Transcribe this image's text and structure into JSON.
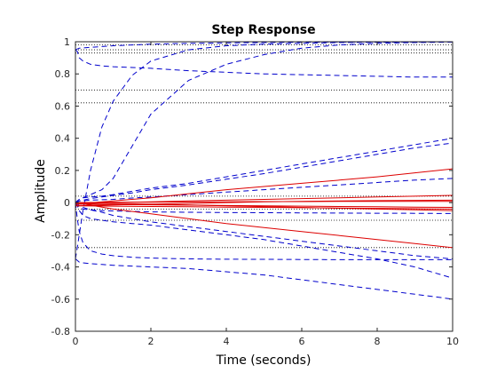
{
  "chart_data": {
    "type": "line",
    "title": "Step Response",
    "xlabel": "Time (seconds)",
    "ylabel": "Amplitude",
    "xlim": [
      0,
      10
    ],
    "ylim": [
      -0.8,
      1
    ],
    "xticks": [
      "0",
      "2",
      "4",
      "6",
      "8",
      "10"
    ],
    "yticks": [
      "-0.8",
      "-0.6",
      "-0.4",
      "-0.2",
      "0",
      "0.2",
      "0.4",
      "0.6",
      "0.8",
      "1"
    ],
    "reference_levels": [
      1,
      0.98,
      0.95,
      0.93,
      0.7,
      0.62,
      0.04,
      -0.04,
      -0.11,
      -0.28
    ],
    "colors": {
      "dashed": "#0000cc",
      "solid": "#dd0000",
      "reference": "#000000"
    },
    "series": [
      {
        "style": "dashed",
        "x": [
          0,
          0.05,
          0.1,
          0.2,
          0.4,
          0.7,
          1,
          1.5,
          2,
          3,
          4,
          5,
          6,
          7,
          8,
          9,
          10
        ],
        "y": [
          0.95,
          0.955,
          0.96,
          0.962,
          0.965,
          0.97,
          0.975,
          0.98,
          0.985,
          0.99,
          0.993,
          0.995,
          0.997,
          0.998,
          0.999,
          0.999,
          1.0
        ]
      },
      {
        "style": "dashed",
        "x": [
          0,
          0.05,
          0.1,
          0.2,
          0.4,
          0.7,
          1,
          1.5,
          2,
          3,
          4,
          5,
          6,
          7,
          8,
          9,
          10
        ],
        "y": [
          0.95,
          0.94,
          0.9,
          0.88,
          0.86,
          0.85,
          0.845,
          0.84,
          0.835,
          0.82,
          0.81,
          0.8,
          0.795,
          0.79,
          0.785,
          0.78,
          0.78
        ]
      },
      {
        "style": "dashed",
        "x": [
          0,
          0.05,
          0.1,
          0.2,
          0.4,
          0.7,
          1,
          1.5,
          2,
          3,
          4,
          5,
          6,
          7,
          8,
          9,
          10
        ],
        "y": [
          -0.35,
          -0.28,
          -0.2,
          -0.05,
          0.2,
          0.47,
          0.63,
          0.79,
          0.88,
          0.95,
          0.975,
          0.985,
          0.99,
          0.995,
          0.997,
          0.998,
          1.0
        ]
      },
      {
        "style": "dashed",
        "x": [
          0,
          0.05,
          0.1,
          0.2,
          0.4,
          0.7,
          1,
          1.5,
          2,
          3,
          4,
          5,
          6,
          7,
          8,
          9,
          10
        ],
        "y": [
          0.0,
          0.01,
          0.02,
          0.03,
          0.05,
          0.08,
          0.15,
          0.35,
          0.55,
          0.76,
          0.86,
          0.92,
          0.96,
          0.98,
          0.99,
          0.995,
          0.998
        ]
      },
      {
        "style": "dashed",
        "x": [
          0,
          0.05,
          0.1,
          0.2,
          0.4,
          0.7,
          1,
          1.5,
          2,
          3,
          4,
          5,
          6,
          7,
          8,
          9,
          10
        ],
        "y": [
          0.0,
          0.01,
          0.02,
          0.03,
          0.035,
          0.04,
          0.05,
          0.07,
          0.09,
          0.12,
          0.16,
          0.2,
          0.24,
          0.28,
          0.32,
          0.36,
          0.4
        ]
      },
      {
        "style": "dashed",
        "x": [
          0,
          0.05,
          0.1,
          0.2,
          0.4,
          0.7,
          1,
          1.5,
          2,
          3,
          4,
          5,
          6,
          7,
          8,
          9,
          10
        ],
        "y": [
          0.0,
          0.005,
          0.01,
          0.015,
          0.025,
          0.035,
          0.045,
          0.06,
          0.08,
          0.11,
          0.145,
          0.18,
          0.22,
          0.26,
          0.3,
          0.34,
          0.37
        ]
      },
      {
        "style": "dashed",
        "x": [
          0,
          0.05,
          0.1,
          0.2,
          0.4,
          0.7,
          1,
          1.5,
          2,
          3,
          4,
          5,
          6,
          7,
          8,
          9,
          10
        ],
        "y": [
          0.0,
          0.005,
          0.01,
          0.012,
          0.015,
          0.018,
          0.02,
          0.028,
          0.035,
          0.05,
          0.065,
          0.08,
          0.095,
          0.11,
          0.125,
          0.14,
          0.15
        ]
      },
      {
        "style": "dashed",
        "x": [
          0,
          0.05,
          0.1,
          0.2,
          0.4,
          0.7,
          1,
          1.5,
          2,
          3,
          4,
          5,
          6,
          7,
          8,
          9,
          10
        ],
        "y": [
          -0.35,
          -0.36,
          -0.37,
          -0.375,
          -0.38,
          -0.385,
          -0.39,
          -0.395,
          -0.4,
          -0.41,
          -0.43,
          -0.45,
          -0.48,
          -0.51,
          -0.54,
          -0.57,
          -0.6
        ]
      },
      {
        "style": "dashed",
        "x": [
          0,
          0.05,
          0.1,
          0.2,
          0.4,
          0.7,
          1,
          1.5,
          2,
          3,
          4,
          5,
          6,
          7,
          8,
          9,
          10
        ],
        "y": [
          0.0,
          -0.02,
          -0.05,
          -0.08,
          -0.1,
          -0.11,
          -0.12,
          -0.13,
          -0.14,
          -0.17,
          -0.2,
          -0.23,
          -0.27,
          -0.31,
          -0.35,
          -0.4,
          -0.47
        ]
      },
      {
        "style": "dashed",
        "x": [
          0,
          0.05,
          0.1,
          0.2,
          0.4,
          0.7,
          1,
          1.5,
          2,
          3,
          4,
          5,
          6,
          7,
          8,
          9,
          10
        ],
        "y": [
          0.0,
          -0.01,
          -0.02,
          -0.03,
          -0.045,
          -0.06,
          -0.08,
          -0.1,
          -0.12,
          -0.15,
          -0.18,
          -0.21,
          -0.24,
          -0.27,
          -0.3,
          -0.33,
          -0.35
        ]
      },
      {
        "style": "dashed",
        "x": [
          0,
          0.05,
          0.1,
          0.2,
          0.4,
          0.7,
          1,
          1.5,
          2,
          3,
          4,
          5,
          6,
          7,
          8,
          9,
          10
        ],
        "y": [
          0.0,
          -0.1,
          -0.18,
          -0.25,
          -0.3,
          -0.32,
          -0.33,
          -0.34,
          -0.345,
          -0.35,
          -0.352,
          -0.353,
          -0.354,
          -0.355,
          -0.355,
          -0.355,
          -0.355
        ]
      },
      {
        "style": "dashed",
        "x": [
          0,
          0.05,
          0.1,
          0.2,
          0.4,
          0.7,
          1,
          1.5,
          2,
          3,
          4,
          5,
          6,
          7,
          8,
          9,
          10
        ],
        "y": [
          0.0,
          -0.02,
          -0.03,
          -0.04,
          -0.045,
          -0.05,
          -0.052,
          -0.055,
          -0.058,
          -0.06,
          -0.062,
          -0.063,
          -0.064,
          -0.065,
          -0.066,
          -0.067,
          -0.068
        ]
      },
      {
        "style": "solid",
        "x": [
          0,
          1,
          2,
          3,
          4,
          5,
          6,
          7,
          8,
          9,
          10
        ],
        "y": [
          -0.01,
          0.01,
          0.03,
          0.055,
          0.08,
          0.1,
          0.12,
          0.14,
          0.16,
          0.185,
          0.21
        ]
      },
      {
        "style": "solid",
        "x": [
          0,
          1,
          2,
          3,
          4,
          5,
          6,
          7,
          8,
          9,
          10
        ],
        "y": [
          0.0,
          -0.04,
          -0.07,
          -0.1,
          -0.13,
          -0.155,
          -0.18,
          -0.205,
          -0.23,
          -0.255,
          -0.28
        ]
      },
      {
        "style": "solid",
        "x": [
          0,
          1,
          2,
          3,
          4,
          5,
          6,
          7,
          8,
          9,
          10
        ],
        "y": [
          -0.01,
          0.0,
          0.005,
          0.01,
          0.015,
          0.02,
          0.025,
          0.03,
          0.035,
          0.04,
          0.045
        ]
      },
      {
        "style": "solid",
        "x": [
          0,
          1,
          2,
          3,
          4,
          5,
          6,
          7,
          8,
          9,
          10
        ],
        "y": [
          0.0,
          -0.005,
          -0.01,
          -0.015,
          -0.02,
          -0.025,
          -0.03,
          -0.035,
          -0.04,
          -0.045,
          -0.05
        ]
      },
      {
        "style": "solid",
        "x": [
          0,
          1,
          2,
          3,
          4,
          5,
          6,
          7,
          8,
          9,
          10
        ],
        "y": [
          -0.02,
          -0.015,
          -0.01,
          -0.005,
          0.0,
          0.005,
          0.008,
          0.01,
          0.012,
          0.014,
          0.015
        ]
      },
      {
        "style": "solid",
        "x": [
          0,
          1,
          2,
          3,
          4,
          5,
          6,
          7,
          8,
          9,
          10
        ],
        "y": [
          -0.02,
          -0.022,
          -0.024,
          -0.026,
          -0.028,
          -0.03,
          -0.032,
          -0.034,
          -0.036,
          -0.038,
          -0.04
        ]
      },
      {
        "style": "solid",
        "x": [
          0,
          1,
          2,
          3,
          4,
          5,
          6,
          7,
          8,
          9,
          10
        ],
        "y": [
          0.0,
          0.002,
          0.003,
          0.004,
          0.005,
          0.006,
          0.006,
          0.007,
          0.007,
          0.008,
          0.008
        ]
      },
      {
        "style": "solid",
        "x": [
          0,
          1,
          2,
          3,
          4,
          5,
          6,
          7,
          8,
          9,
          10
        ],
        "y": [
          -0.01,
          -0.012,
          -0.014,
          -0.016,
          -0.018,
          -0.02,
          -0.022,
          -0.024,
          -0.026,
          -0.028,
          -0.03
        ]
      }
    ]
  }
}
